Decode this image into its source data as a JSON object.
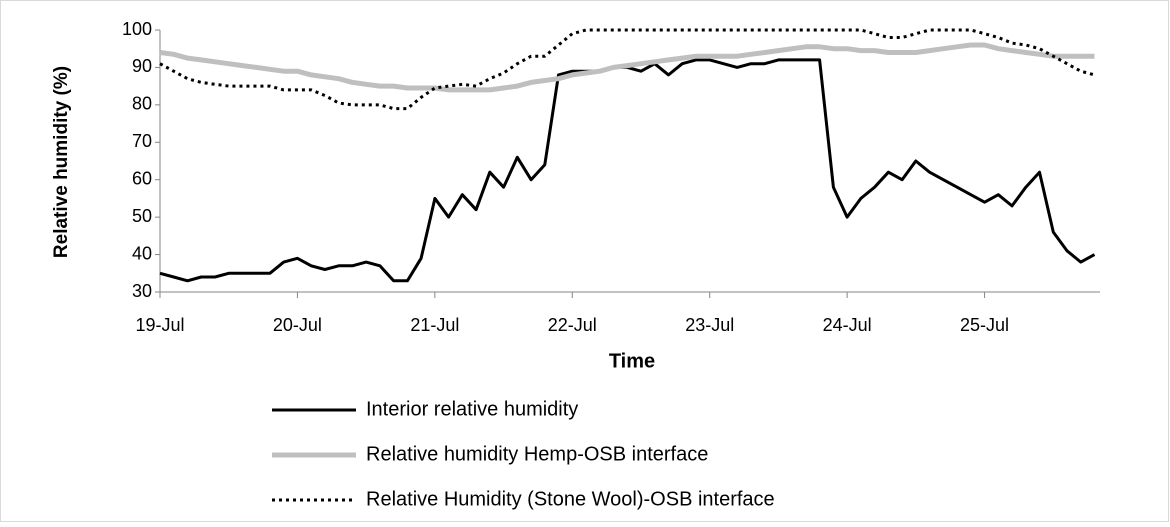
{
  "chart_data": {
    "type": "line",
    "ylabel": "Relative humidity (%)",
    "xlabel": "Time",
    "xlim": [
      19,
      25.84
    ],
    "ylim": [
      30,
      100
    ],
    "xticks": [
      {
        "value": 19,
        "label": "19-Jul"
      },
      {
        "value": 20,
        "label": "20-Jul"
      },
      {
        "value": 21,
        "label": "21-Jul"
      },
      {
        "value": 22,
        "label": "22-Jul"
      },
      {
        "value": 23,
        "label": "23-Jul"
      },
      {
        "value": 24,
        "label": "24-Jul"
      },
      {
        "value": 25,
        "label": "25-Jul"
      }
    ],
    "yticks": [
      30,
      40,
      50,
      60,
      70,
      80,
      90,
      100
    ],
    "legend": "bottom",
    "x": [
      19.0,
      19.1,
      19.2,
      19.3,
      19.4,
      19.5,
      19.6,
      19.7,
      19.8,
      19.9,
      20.0,
      20.1,
      20.2,
      20.3,
      20.4,
      20.5,
      20.6,
      20.7,
      20.8,
      20.9,
      21.0,
      21.1,
      21.2,
      21.3,
      21.4,
      21.5,
      21.6,
      21.7,
      21.8,
      21.9,
      22.0,
      22.1,
      22.2,
      22.3,
      22.4,
      22.5,
      22.6,
      22.7,
      22.8,
      22.9,
      23.0,
      23.1,
      23.2,
      23.3,
      23.4,
      23.5,
      23.6,
      23.7,
      23.8,
      23.9,
      24.0,
      24.1,
      24.2,
      24.3,
      24.4,
      24.5,
      24.6,
      24.7,
      24.8,
      24.9,
      25.0,
      25.1,
      25.2,
      25.3,
      25.4,
      25.5,
      25.6,
      25.7,
      25.8
    ],
    "series": [
      {
        "name": "Interior relative humidity",
        "color": "#000000",
        "line_width": 3,
        "style": "solid",
        "values": [
          35,
          34,
          33,
          34,
          34,
          35,
          35,
          35,
          35,
          38,
          39,
          37,
          36,
          37,
          37,
          38,
          37,
          33,
          33,
          39,
          55,
          50,
          56,
          52,
          62,
          58,
          66,
          60,
          64,
          88,
          89,
          89,
          89,
          90,
          90,
          89,
          91,
          88,
          91,
          92,
          92,
          91,
          90,
          91,
          91,
          92,
          92,
          92,
          92,
          58,
          50,
          55,
          58,
          62,
          60,
          65,
          62,
          60,
          58,
          56,
          54,
          56,
          53,
          58,
          62,
          46,
          41,
          38,
          40
        ]
      },
      {
        "name": "Relative humidity Hemp-OSB interface",
        "color": "#bfbfbf",
        "line_width": 5,
        "style": "solid",
        "values": [
          94,
          93.5,
          92.5,
          92,
          91.5,
          91,
          90.5,
          90,
          89.5,
          89,
          89,
          88,
          87.5,
          87,
          86,
          85.5,
          85,
          85,
          84.5,
          84.5,
          84.5,
          84,
          84,
          84,
          84,
          84.5,
          85,
          86,
          86.5,
          87,
          88,
          88.5,
          89,
          90,
          90.5,
          91,
          91.5,
          92,
          92.5,
          93,
          93,
          93,
          93,
          93.5,
          94,
          94.5,
          95,
          95.5,
          95.5,
          95,
          95,
          94.5,
          94.5,
          94,
          94,
          94,
          94.5,
          95,
          95.5,
          96,
          96,
          95,
          94.5,
          94,
          93.5,
          93,
          93,
          93,
          93
        ]
      },
      {
        "name": "Relative Humidity (Stone Wool)-OSB interface",
        "color": "#000000",
        "line_width": 3,
        "style": "dotted",
        "values": [
          91,
          89,
          87,
          86,
          85.5,
          85,
          85,
          85,
          85,
          84,
          84,
          84,
          82.5,
          80.5,
          80,
          80,
          80,
          79,
          79,
          82,
          84.5,
          85,
          85.5,
          85,
          87,
          88.5,
          91,
          93,
          93,
          96,
          99,
          100,
          100,
          100,
          100,
          100,
          100,
          100,
          100,
          100,
          100,
          100,
          100,
          100,
          100,
          100,
          100,
          100,
          100,
          100,
          100,
          100,
          99,
          98,
          98,
          99,
          100,
          100,
          100,
          100,
          99,
          98,
          96.5,
          96,
          95,
          93,
          91,
          89,
          88
        ]
      }
    ]
  }
}
